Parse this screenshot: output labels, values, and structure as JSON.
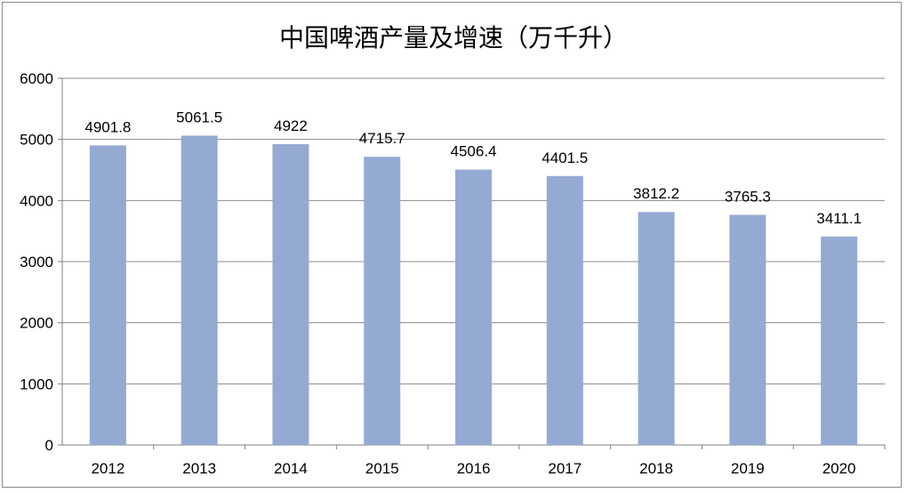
{
  "chart_data": {
    "type": "bar",
    "title": "中国啤酒产量及增速（万千升）",
    "categories": [
      "2012",
      "2013",
      "2014",
      "2015",
      "2016",
      "2017",
      "2018",
      "2019",
      "2020"
    ],
    "values": [
      4901.8,
      5061.5,
      4922,
      4715.7,
      4506.4,
      4401.5,
      3812.2,
      3765.3,
      3411.1
    ],
    "value_labels": [
      "4901.8",
      "5061.5",
      "4922",
      "4715.7",
      "4506.4",
      "4401.5",
      "3812.2",
      "3765.3",
      "3411.1"
    ],
    "yticks": [
      "0",
      "1000",
      "2000",
      "3000",
      "4000",
      "5000",
      "6000"
    ],
    "ylim": [
      0,
      6000
    ],
    "xlabel": "",
    "ylabel": "",
    "grid": true,
    "bar_color": "#95aad3",
    "legend": "none"
  }
}
